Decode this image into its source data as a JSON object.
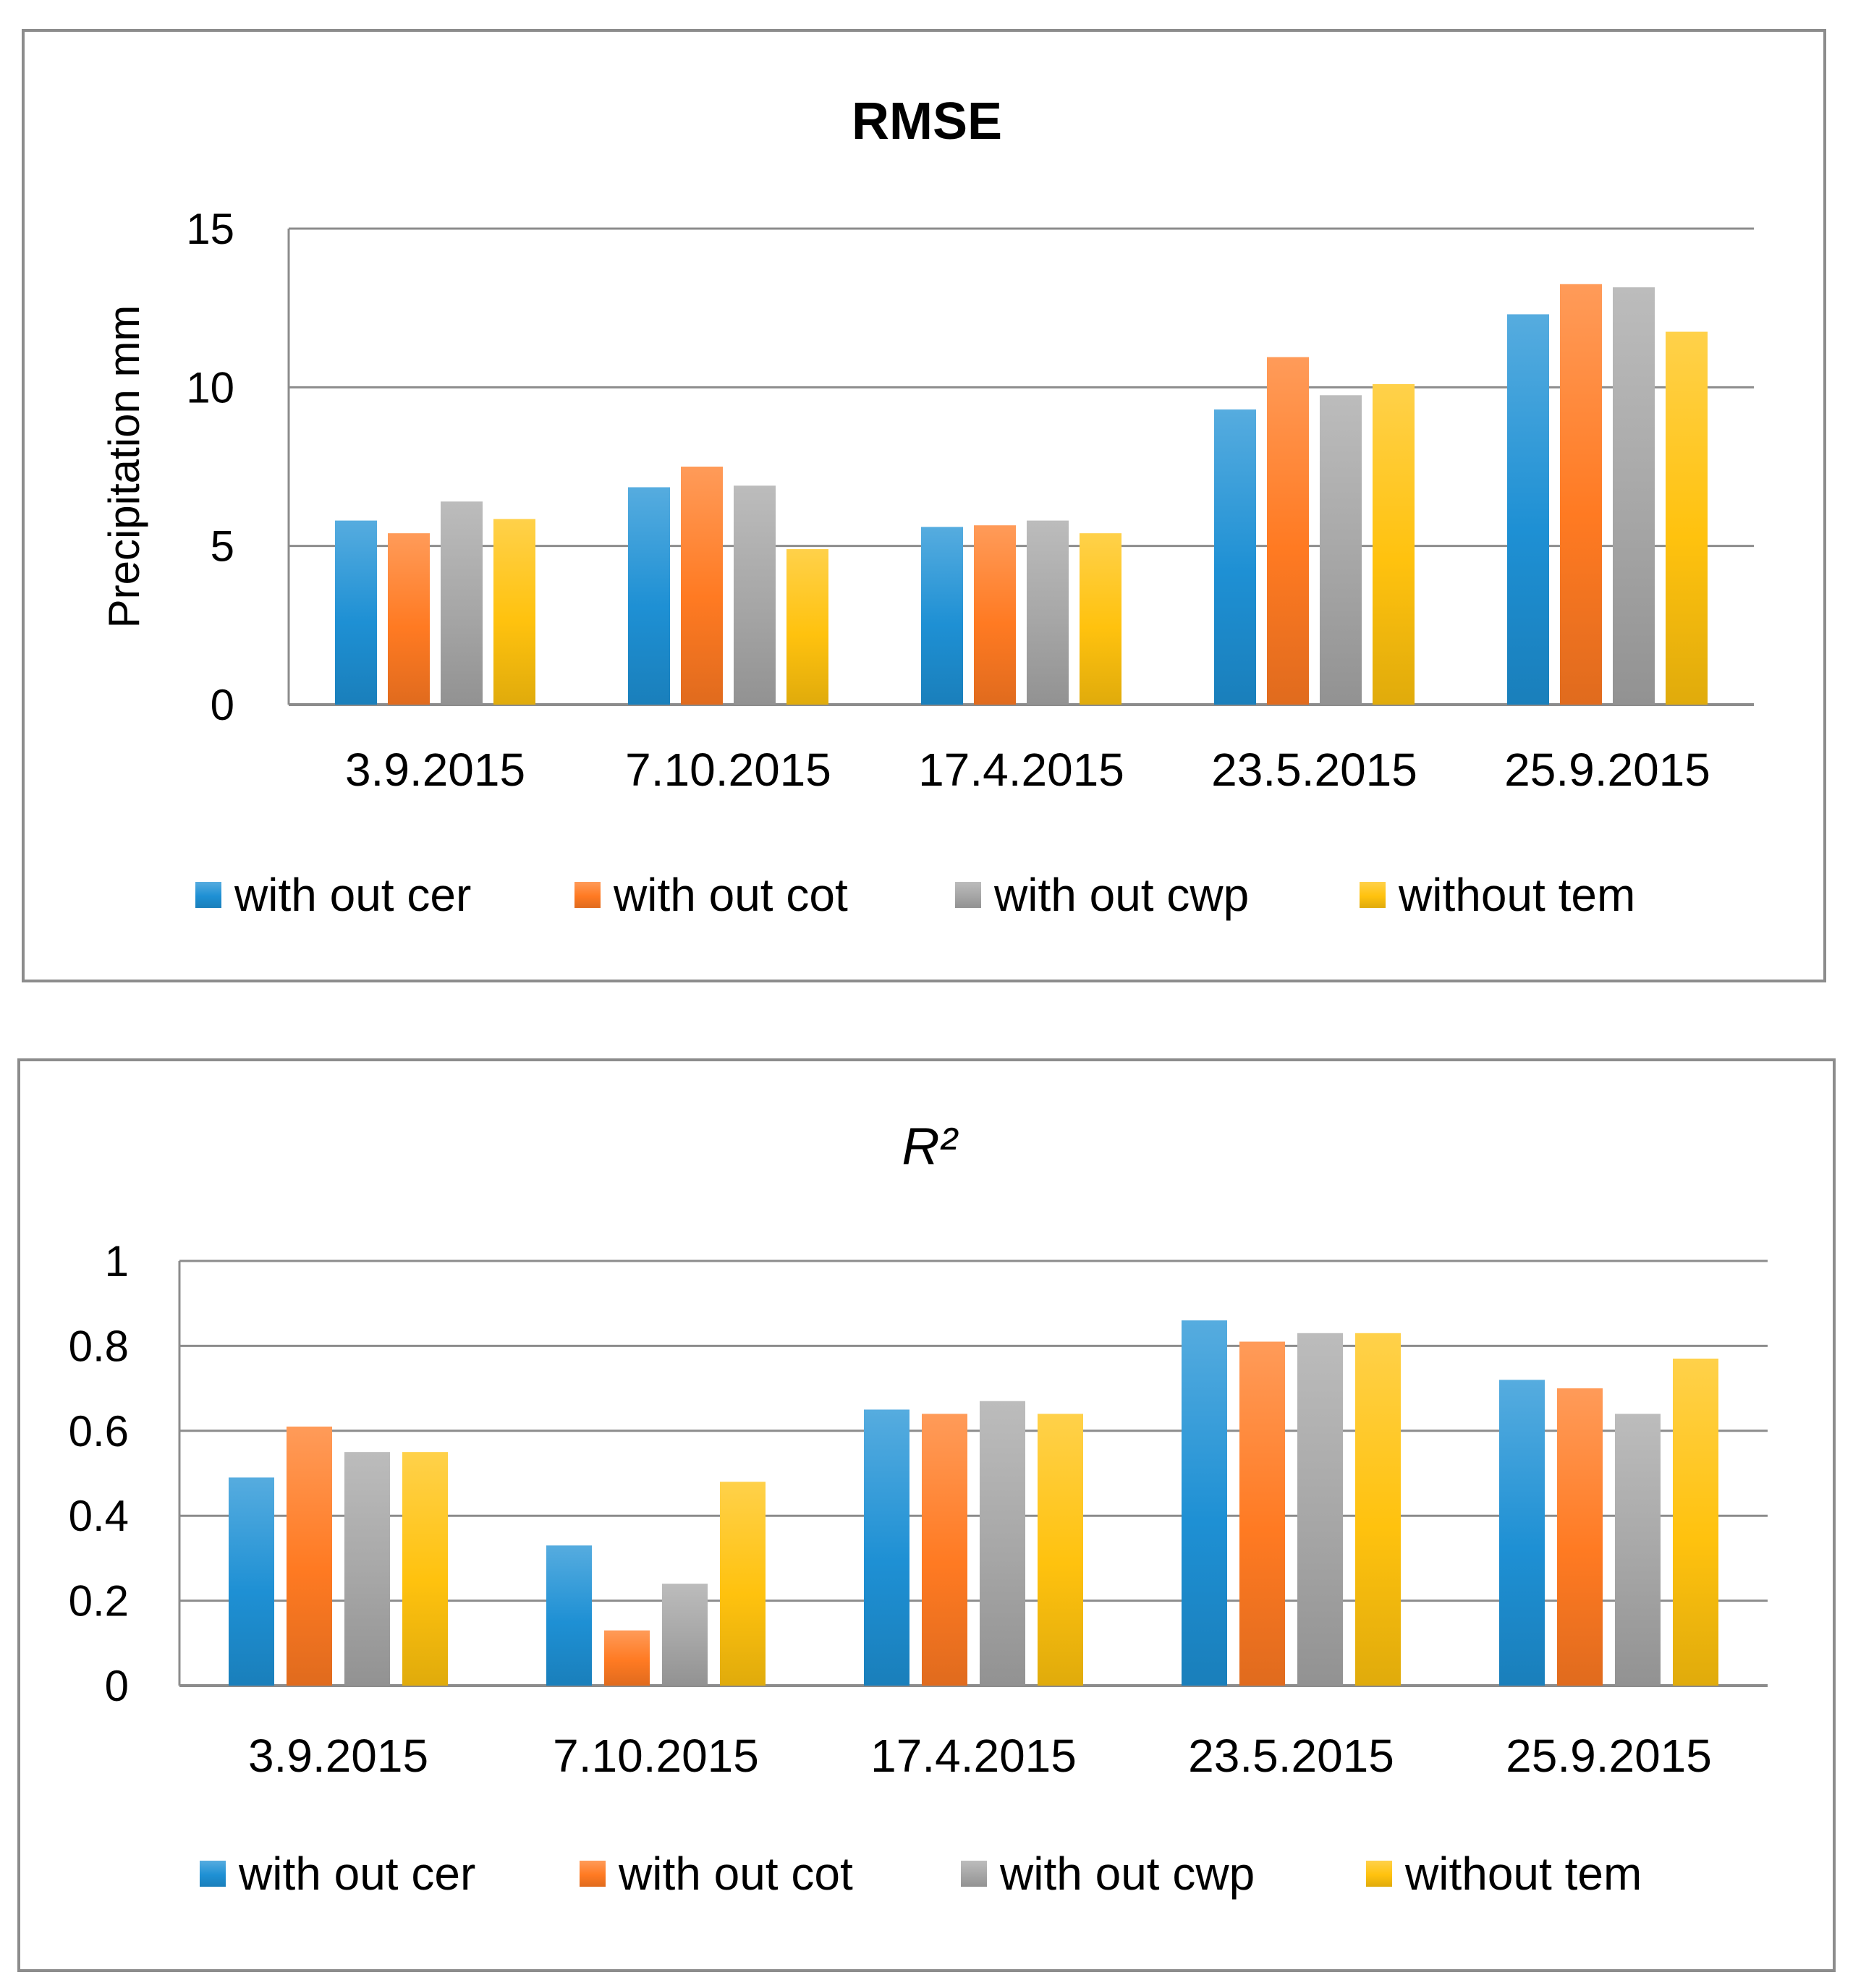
{
  "chart_data": [
    {
      "type": "bar",
      "title": "RMSE",
      "ylabel": "Precipitation mm",
      "xlabel": "",
      "ylim": [
        0,
        15
      ],
      "yticks": [
        0,
        5,
        10,
        15
      ],
      "ytick_labels": [
        "0",
        "5",
        "10",
        "15"
      ],
      "grid": true,
      "legend_position": "bottom",
      "categories": [
        "3.9.2015",
        "7.10.2015",
        "17.4.2015",
        "23.5.2015",
        "25.9.2015"
      ],
      "series": [
        {
          "name": "with out cer",
          "color": "#1e90d4",
          "values": [
            5.8,
            6.85,
            5.6,
            9.3,
            12.3
          ]
        },
        {
          "name": "with out cot",
          "color": "#ff7a22",
          "values": [
            5.4,
            7.5,
            5.65,
            10.95,
            13.25
          ]
        },
        {
          "name": "with out cwp",
          "color": "#a6a6a6",
          "values": [
            6.4,
            6.9,
            5.8,
            9.75,
            13.15
          ]
        },
        {
          "name": "without tem",
          "color": "#ffc20e",
          "values": [
            5.85,
            4.9,
            5.4,
            10.1,
            11.75
          ]
        }
      ]
    },
    {
      "type": "bar",
      "title": "R²",
      "ylabel": "",
      "xlabel": "",
      "ylim": [
        0,
        1
      ],
      "yticks": [
        0,
        0.2,
        0.4,
        0.6,
        0.8,
        1
      ],
      "ytick_labels": [
        "0",
        "0.2",
        "0.4",
        "0.6",
        "0.8",
        "1"
      ],
      "grid": true,
      "legend_position": "bottom",
      "categories": [
        "3.9.2015",
        "7.10.2015",
        "17.4.2015",
        "23.5.2015",
        "25.9.2015"
      ],
      "series": [
        {
          "name": "with out cer",
          "color": "#1e90d4",
          "values": [
            0.49,
            0.33,
            0.65,
            0.86,
            0.72
          ]
        },
        {
          "name": "with out cot",
          "color": "#ff7a22",
          "values": [
            0.61,
            0.13,
            0.64,
            0.81,
            0.7
          ]
        },
        {
          "name": "with out cwp",
          "color": "#a6a6a6",
          "values": [
            0.55,
            0.24,
            0.67,
            0.83,
            0.64
          ]
        },
        {
          "name": "without tem",
          "color": "#ffc20e",
          "values": [
            0.55,
            0.48,
            0.64,
            0.83,
            0.77
          ]
        }
      ]
    }
  ]
}
